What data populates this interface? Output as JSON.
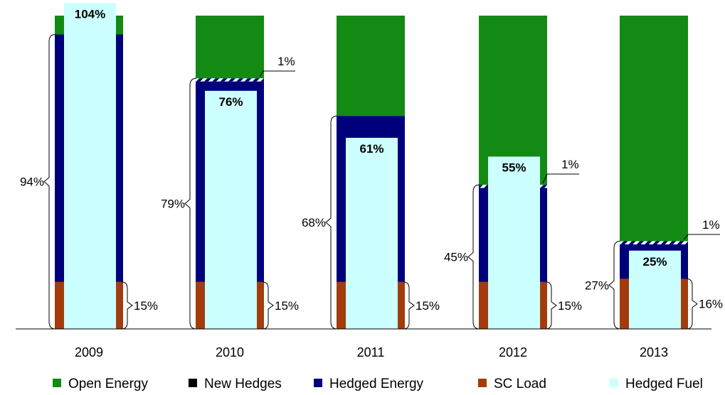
{
  "chart_data": {
    "type": "bar",
    "categories": [
      "2009",
      "2010",
      "2011",
      "2012",
      "2013"
    ],
    "ylim": [
      0,
      100
    ],
    "series": [
      {
        "name": "Open Energy",
        "color": "#138a13",
        "values": [
          6,
          20,
          32,
          54,
          72
        ]
      },
      {
        "name": "New Hedges",
        "color": "#000000",
        "values": [
          0,
          1,
          0,
          1,
          1
        ]
      },
      {
        "name": "Hedged Energy",
        "color": "#00007a",
        "values": [
          79,
          64,
          53,
          30,
          11
        ]
      },
      {
        "name": "SC Load",
        "color": "#a33c0c",
        "values": [
          15,
          15,
          15,
          15,
          16
        ]
      },
      {
        "name": "Hedged Fuel",
        "color": "#ccffff",
        "values": [
          104,
          76,
          61,
          55,
          25
        ]
      }
    ],
    "hedged_fuel_labels": [
      "104%",
      "76%",
      "61%",
      "55%",
      "25%"
    ],
    "total_hedged_labels": [
      "94%",
      "79%",
      "68%",
      "45%",
      "27%"
    ],
    "sc_load_labels": [
      "15%",
      "15%",
      "15%",
      "15%",
      "16%"
    ],
    "new_hedges_labels": [
      "",
      "1%",
      "",
      "1%",
      "1%"
    ],
    "legend": [
      "Open Energy",
      "New Hedges",
      "Hedged Energy",
      "SC Load",
      "Hedged Fuel"
    ]
  }
}
